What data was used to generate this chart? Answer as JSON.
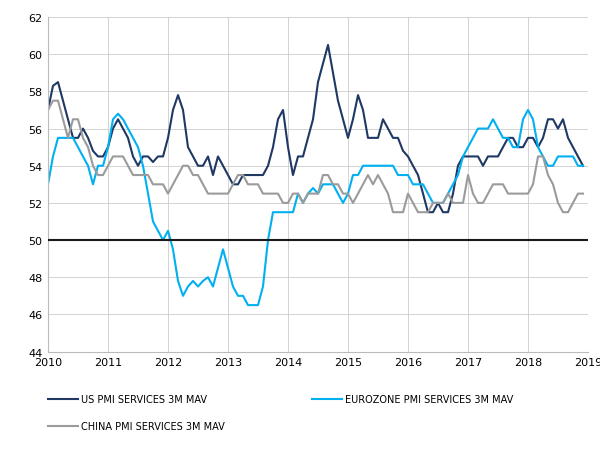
{
  "ylim": [
    44,
    62
  ],
  "xlim": [
    2010,
    2019
  ],
  "yticks": [
    44,
    46,
    48,
    50,
    52,
    54,
    56,
    58,
    60,
    62
  ],
  "xticks": [
    2010,
    2011,
    2012,
    2013,
    2014,
    2015,
    2016,
    2017,
    2018,
    2019
  ],
  "hline_y": 50,
  "hline_color": "#1a1a1a",
  "grid_color": "#cccccc",
  "background_color": "#ffffff",
  "us_color": "#1f3864",
  "eurozone_color": "#00b0f0",
  "china_color": "#9b9b9b",
  "us_label": "US PMI SERVICES 3M MAV",
  "eurozone_label": "EUROZONE PMI SERVICES 3M MAV",
  "china_label": "CHINA PMI SERVICES 3M MAV",
  "us_data": [
    [
      2010.0,
      57.0
    ],
    [
      2010.083,
      58.3
    ],
    [
      2010.167,
      58.5
    ],
    [
      2010.25,
      57.5
    ],
    [
      2010.333,
      56.5
    ],
    [
      2010.417,
      55.5
    ],
    [
      2010.5,
      55.5
    ],
    [
      2010.583,
      56.0
    ],
    [
      2010.667,
      55.5
    ],
    [
      2010.75,
      54.8
    ],
    [
      2010.833,
      54.5
    ],
    [
      2010.917,
      54.5
    ],
    [
      2011.0,
      55.0
    ],
    [
      2011.083,
      56.0
    ],
    [
      2011.167,
      56.5
    ],
    [
      2011.25,
      56.0
    ],
    [
      2011.333,
      55.5
    ],
    [
      2011.417,
      54.5
    ],
    [
      2011.5,
      54.0
    ],
    [
      2011.583,
      54.5
    ],
    [
      2011.667,
      54.5
    ],
    [
      2011.75,
      54.2
    ],
    [
      2011.833,
      54.5
    ],
    [
      2011.917,
      54.5
    ],
    [
      2012.0,
      55.5
    ],
    [
      2012.083,
      57.0
    ],
    [
      2012.167,
      57.8
    ],
    [
      2012.25,
      57.0
    ],
    [
      2012.333,
      55.0
    ],
    [
      2012.417,
      54.5
    ],
    [
      2012.5,
      54.0
    ],
    [
      2012.583,
      54.0
    ],
    [
      2012.667,
      54.5
    ],
    [
      2012.75,
      53.5
    ],
    [
      2012.833,
      54.5
    ],
    [
      2012.917,
      54.0
    ],
    [
      2013.0,
      53.5
    ],
    [
      2013.083,
      53.0
    ],
    [
      2013.167,
      53.0
    ],
    [
      2013.25,
      53.5
    ],
    [
      2013.333,
      53.5
    ],
    [
      2013.417,
      53.5
    ],
    [
      2013.5,
      53.5
    ],
    [
      2013.583,
      53.5
    ],
    [
      2013.667,
      54.0
    ],
    [
      2013.75,
      55.0
    ],
    [
      2013.833,
      56.5
    ],
    [
      2013.917,
      57.0
    ],
    [
      2014.0,
      55.0
    ],
    [
      2014.083,
      53.5
    ],
    [
      2014.167,
      54.5
    ],
    [
      2014.25,
      54.5
    ],
    [
      2014.333,
      55.5
    ],
    [
      2014.417,
      56.5
    ],
    [
      2014.5,
      58.5
    ],
    [
      2014.583,
      59.5
    ],
    [
      2014.667,
      60.5
    ],
    [
      2014.75,
      59.0
    ],
    [
      2014.833,
      57.5
    ],
    [
      2014.917,
      56.5
    ],
    [
      2015.0,
      55.5
    ],
    [
      2015.083,
      56.5
    ],
    [
      2015.167,
      57.8
    ],
    [
      2015.25,
      57.0
    ],
    [
      2015.333,
      55.5
    ],
    [
      2015.417,
      55.5
    ],
    [
      2015.5,
      55.5
    ],
    [
      2015.583,
      56.5
    ],
    [
      2015.667,
      56.0
    ],
    [
      2015.75,
      55.5
    ],
    [
      2015.833,
      55.5
    ],
    [
      2015.917,
      54.8
    ],
    [
      2016.0,
      54.5
    ],
    [
      2016.083,
      54.0
    ],
    [
      2016.167,
      53.5
    ],
    [
      2016.25,
      52.5
    ],
    [
      2016.333,
      51.5
    ],
    [
      2016.417,
      51.5
    ],
    [
      2016.5,
      52.0
    ],
    [
      2016.583,
      51.5
    ],
    [
      2016.667,
      51.5
    ],
    [
      2016.75,
      52.5
    ],
    [
      2016.833,
      54.0
    ],
    [
      2016.917,
      54.5
    ],
    [
      2017.0,
      54.5
    ],
    [
      2017.083,
      54.5
    ],
    [
      2017.167,
      54.5
    ],
    [
      2017.25,
      54.0
    ],
    [
      2017.333,
      54.5
    ],
    [
      2017.417,
      54.5
    ],
    [
      2017.5,
      54.5
    ],
    [
      2017.583,
      55.0
    ],
    [
      2017.667,
      55.5
    ],
    [
      2017.75,
      55.5
    ],
    [
      2017.833,
      55.0
    ],
    [
      2017.917,
      55.0
    ],
    [
      2018.0,
      55.5
    ],
    [
      2018.083,
      55.5
    ],
    [
      2018.167,
      55.0
    ],
    [
      2018.25,
      55.5
    ],
    [
      2018.333,
      56.5
    ],
    [
      2018.417,
      56.5
    ],
    [
      2018.5,
      56.0
    ],
    [
      2018.583,
      56.5
    ],
    [
      2018.667,
      55.5
    ],
    [
      2018.75,
      55.0
    ],
    [
      2018.833,
      54.5
    ],
    [
      2018.917,
      54.0
    ]
  ],
  "eurozone_data": [
    [
      2010.0,
      53.0
    ],
    [
      2010.083,
      54.5
    ],
    [
      2010.167,
      55.5
    ],
    [
      2010.25,
      55.5
    ],
    [
      2010.333,
      55.5
    ],
    [
      2010.417,
      55.5
    ],
    [
      2010.5,
      55.0
    ],
    [
      2010.583,
      54.5
    ],
    [
      2010.667,
      54.0
    ],
    [
      2010.75,
      53.0
    ],
    [
      2010.833,
      54.0
    ],
    [
      2010.917,
      54.0
    ],
    [
      2011.0,
      55.0
    ],
    [
      2011.083,
      56.5
    ],
    [
      2011.167,
      56.8
    ],
    [
      2011.25,
      56.5
    ],
    [
      2011.333,
      56.0
    ],
    [
      2011.417,
      55.5
    ],
    [
      2011.5,
      55.0
    ],
    [
      2011.583,
      54.0
    ],
    [
      2011.667,
      52.5
    ],
    [
      2011.75,
      51.0
    ],
    [
      2011.833,
      50.5
    ],
    [
      2011.917,
      50.0
    ],
    [
      2012.0,
      50.5
    ],
    [
      2012.083,
      49.5
    ],
    [
      2012.167,
      47.8
    ],
    [
      2012.25,
      47.0
    ],
    [
      2012.333,
      47.5
    ],
    [
      2012.417,
      47.8
    ],
    [
      2012.5,
      47.5
    ],
    [
      2012.583,
      47.8
    ],
    [
      2012.667,
      48.0
    ],
    [
      2012.75,
      47.5
    ],
    [
      2012.833,
      48.5
    ],
    [
      2012.917,
      49.5
    ],
    [
      2013.0,
      48.5
    ],
    [
      2013.083,
      47.5
    ],
    [
      2013.167,
      47.0
    ],
    [
      2013.25,
      47.0
    ],
    [
      2013.333,
      46.5
    ],
    [
      2013.417,
      46.5
    ],
    [
      2013.5,
      46.5
    ],
    [
      2013.583,
      47.5
    ],
    [
      2013.667,
      50.0
    ],
    [
      2013.75,
      51.5
    ],
    [
      2013.833,
      51.5
    ],
    [
      2013.917,
      51.5
    ],
    [
      2014.0,
      51.5
    ],
    [
      2014.083,
      51.5
    ],
    [
      2014.167,
      52.5
    ],
    [
      2014.25,
      52.0
    ],
    [
      2014.333,
      52.5
    ],
    [
      2014.417,
      52.8
    ],
    [
      2014.5,
      52.5
    ],
    [
      2014.583,
      53.0
    ],
    [
      2014.667,
      53.0
    ],
    [
      2014.75,
      53.0
    ],
    [
      2014.833,
      52.5
    ],
    [
      2014.917,
      52.0
    ],
    [
      2015.0,
      52.5
    ],
    [
      2015.083,
      53.5
    ],
    [
      2015.167,
      53.5
    ],
    [
      2015.25,
      54.0
    ],
    [
      2015.333,
      54.0
    ],
    [
      2015.417,
      54.0
    ],
    [
      2015.5,
      54.0
    ],
    [
      2015.583,
      54.0
    ],
    [
      2015.667,
      54.0
    ],
    [
      2015.75,
      54.0
    ],
    [
      2015.833,
      53.5
    ],
    [
      2015.917,
      53.5
    ],
    [
      2016.0,
      53.5
    ],
    [
      2016.083,
      53.0
    ],
    [
      2016.167,
      53.0
    ],
    [
      2016.25,
      53.0
    ],
    [
      2016.333,
      52.5
    ],
    [
      2016.417,
      52.0
    ],
    [
      2016.5,
      52.0
    ],
    [
      2016.583,
      52.0
    ],
    [
      2016.667,
      52.5
    ],
    [
      2016.75,
      53.0
    ],
    [
      2016.833,
      53.5
    ],
    [
      2016.917,
      54.5
    ],
    [
      2017.0,
      55.0
    ],
    [
      2017.083,
      55.5
    ],
    [
      2017.167,
      56.0
    ],
    [
      2017.25,
      56.0
    ],
    [
      2017.333,
      56.0
    ],
    [
      2017.417,
      56.5
    ],
    [
      2017.5,
      56.0
    ],
    [
      2017.583,
      55.5
    ],
    [
      2017.667,
      55.5
    ],
    [
      2017.75,
      55.0
    ],
    [
      2017.833,
      55.0
    ],
    [
      2017.917,
      56.5
    ],
    [
      2018.0,
      57.0
    ],
    [
      2018.083,
      56.5
    ],
    [
      2018.167,
      55.0
    ],
    [
      2018.25,
      54.5
    ],
    [
      2018.333,
      54.0
    ],
    [
      2018.417,
      54.0
    ],
    [
      2018.5,
      54.5
    ],
    [
      2018.583,
      54.5
    ],
    [
      2018.667,
      54.5
    ],
    [
      2018.75,
      54.5
    ],
    [
      2018.833,
      54.0
    ],
    [
      2018.917,
      54.0
    ]
  ],
  "china_data": [
    [
      2010.0,
      57.0
    ],
    [
      2010.083,
      57.5
    ],
    [
      2010.167,
      57.5
    ],
    [
      2010.25,
      56.5
    ],
    [
      2010.333,
      55.5
    ],
    [
      2010.417,
      56.5
    ],
    [
      2010.5,
      56.5
    ],
    [
      2010.583,
      55.5
    ],
    [
      2010.667,
      55.0
    ],
    [
      2010.75,
      54.0
    ],
    [
      2010.833,
      53.5
    ],
    [
      2010.917,
      53.5
    ],
    [
      2011.0,
      54.0
    ],
    [
      2011.083,
      54.5
    ],
    [
      2011.167,
      54.5
    ],
    [
      2011.25,
      54.5
    ],
    [
      2011.333,
      54.0
    ],
    [
      2011.417,
      53.5
    ],
    [
      2011.5,
      53.5
    ],
    [
      2011.583,
      53.5
    ],
    [
      2011.667,
      53.5
    ],
    [
      2011.75,
      53.0
    ],
    [
      2011.833,
      53.0
    ],
    [
      2011.917,
      53.0
    ],
    [
      2012.0,
      52.5
    ],
    [
      2012.083,
      53.0
    ],
    [
      2012.167,
      53.5
    ],
    [
      2012.25,
      54.0
    ],
    [
      2012.333,
      54.0
    ],
    [
      2012.417,
      53.5
    ],
    [
      2012.5,
      53.5
    ],
    [
      2012.583,
      53.0
    ],
    [
      2012.667,
      52.5
    ],
    [
      2012.75,
      52.5
    ],
    [
      2012.833,
      52.5
    ],
    [
      2012.917,
      52.5
    ],
    [
      2013.0,
      52.5
    ],
    [
      2013.083,
      53.0
    ],
    [
      2013.167,
      53.5
    ],
    [
      2013.25,
      53.5
    ],
    [
      2013.333,
      53.0
    ],
    [
      2013.417,
      53.0
    ],
    [
      2013.5,
      53.0
    ],
    [
      2013.583,
      52.5
    ],
    [
      2013.667,
      52.5
    ],
    [
      2013.75,
      52.5
    ],
    [
      2013.833,
      52.5
    ],
    [
      2013.917,
      52.0
    ],
    [
      2014.0,
      52.0
    ],
    [
      2014.083,
      52.5
    ],
    [
      2014.167,
      52.5
    ],
    [
      2014.25,
      52.0
    ],
    [
      2014.333,
      52.5
    ],
    [
      2014.417,
      52.5
    ],
    [
      2014.5,
      52.5
    ],
    [
      2014.583,
      53.5
    ],
    [
      2014.667,
      53.5
    ],
    [
      2014.75,
      53.0
    ],
    [
      2014.833,
      53.0
    ],
    [
      2014.917,
      52.5
    ],
    [
      2015.0,
      52.5
    ],
    [
      2015.083,
      52.0
    ],
    [
      2015.167,
      52.5
    ],
    [
      2015.25,
      53.0
    ],
    [
      2015.333,
      53.5
    ],
    [
      2015.417,
      53.0
    ],
    [
      2015.5,
      53.5
    ],
    [
      2015.583,
      53.0
    ],
    [
      2015.667,
      52.5
    ],
    [
      2015.75,
      51.5
    ],
    [
      2015.833,
      51.5
    ],
    [
      2015.917,
      51.5
    ],
    [
      2016.0,
      52.5
    ],
    [
      2016.083,
      52.0
    ],
    [
      2016.167,
      51.5
    ],
    [
      2016.25,
      51.5
    ],
    [
      2016.333,
      51.5
    ],
    [
      2016.417,
      52.0
    ],
    [
      2016.5,
      52.0
    ],
    [
      2016.583,
      52.0
    ],
    [
      2016.667,
      52.5
    ],
    [
      2016.75,
      52.0
    ],
    [
      2016.833,
      52.0
    ],
    [
      2016.917,
      52.0
    ],
    [
      2017.0,
      53.5
    ],
    [
      2017.083,
      52.5
    ],
    [
      2017.167,
      52.0
    ],
    [
      2017.25,
      52.0
    ],
    [
      2017.333,
      52.5
    ],
    [
      2017.417,
      53.0
    ],
    [
      2017.5,
      53.0
    ],
    [
      2017.583,
      53.0
    ],
    [
      2017.667,
      52.5
    ],
    [
      2017.75,
      52.5
    ],
    [
      2017.833,
      52.5
    ],
    [
      2017.917,
      52.5
    ],
    [
      2018.0,
      52.5
    ],
    [
      2018.083,
      53.0
    ],
    [
      2018.167,
      54.5
    ],
    [
      2018.25,
      54.5
    ],
    [
      2018.333,
      53.5
    ],
    [
      2018.417,
      53.0
    ],
    [
      2018.5,
      52.0
    ],
    [
      2018.583,
      51.5
    ],
    [
      2018.667,
      51.5
    ],
    [
      2018.75,
      52.0
    ],
    [
      2018.833,
      52.5
    ],
    [
      2018.917,
      52.5
    ]
  ]
}
